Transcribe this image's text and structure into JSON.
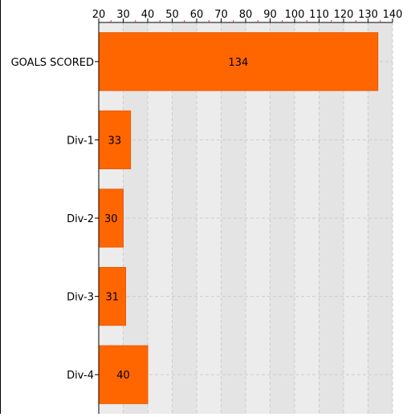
{
  "chart_data": {
    "type": "bar",
    "orientation": "horizontal",
    "categories": [
      "GOALS SCORED",
      "Div-1",
      "Div-2",
      "Div-3",
      "Div-4"
    ],
    "values": [
      134,
      33,
      30,
      31,
      40
    ],
    "data_labels": [
      "134",
      "33",
      "30",
      "31",
      "40"
    ],
    "xlim": [
      20,
      140
    ],
    "x_ticks": [
      20,
      30,
      40,
      50,
      60,
      70,
      80,
      90,
      100,
      110,
      120,
      130,
      140
    ],
    "x_tick_labels": [
      "20",
      "30",
      "40",
      "50",
      "60",
      "70",
      "80",
      "90",
      "100",
      "110",
      "120",
      "130",
      "140"
    ],
    "x_axis_position": "top",
    "grid": true,
    "legend": "none",
    "title": "",
    "xlabel": "",
    "ylabel": "",
    "colors": {
      "bar": "#ff6600",
      "bar_border": "#e85a00",
      "band_dark": "#e4e4e4",
      "band_light": "#ececec",
      "grid": "#cccccc"
    }
  }
}
